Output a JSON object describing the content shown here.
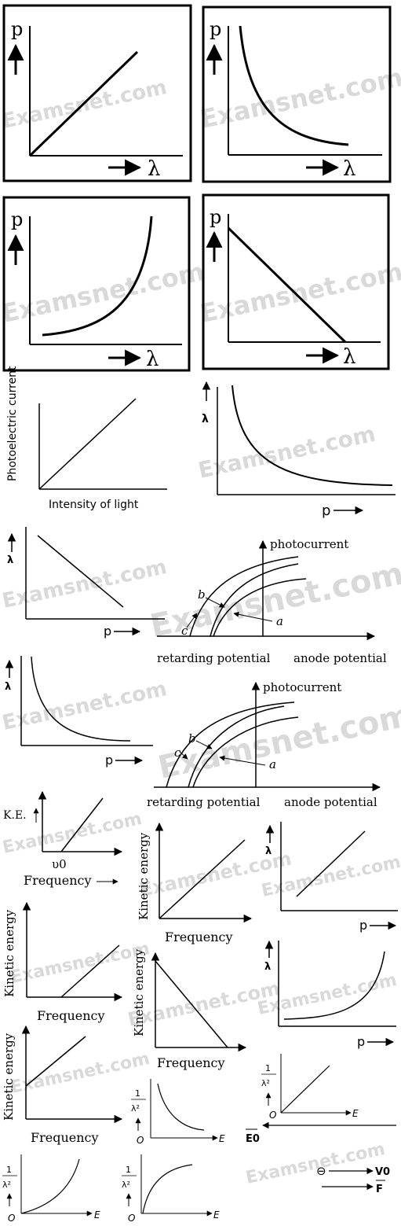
{
  "watermark": "Examsnet.com",
  "labels": {
    "p": "p",
    "lambda": "λ",
    "photoelectric_current": "Photoelectric current",
    "intensity_of_light": "Intensity of light",
    "photocurrent": "photocurrent",
    "retarding_potential": "retarding potential",
    "anode_potential": "anode potential",
    "a": "a",
    "b": "b",
    "c": "c",
    "ke": "K.E.",
    "nu0": "υ0",
    "frequency": "Frequency",
    "kinetic_energy": "Kinetic energy",
    "E": "E",
    "O": "O",
    "one": "1",
    "lambda2": "λ²",
    "E0": "E0",
    "V0": "V0",
    "F": "F",
    "electron": "⊖"
  }
}
